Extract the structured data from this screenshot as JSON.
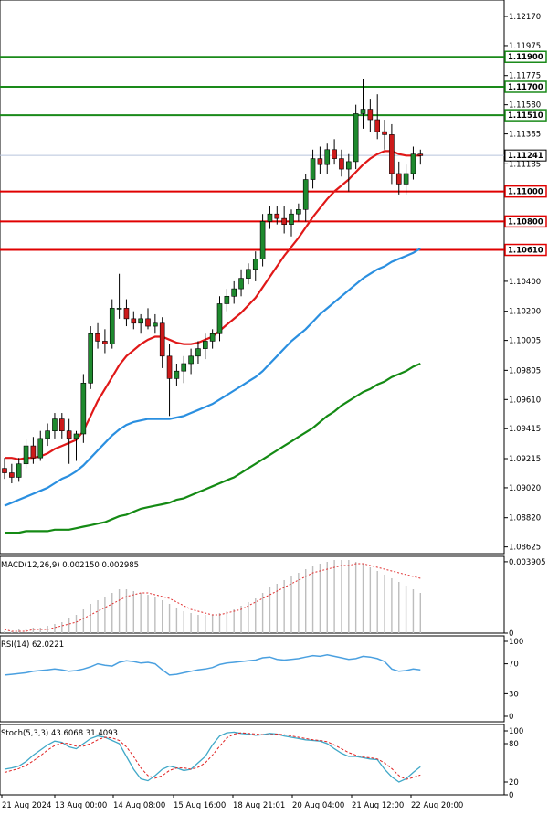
{
  "chart_data": {
    "type": "candlestick",
    "colors": {
      "bull": "#1e8a2e",
      "bear": "#cc1a1a",
      "support": "#e00000",
      "resistance": "#1a8a1a",
      "ma_fast": "#e01818",
      "ma_mid": "#2a8fe0",
      "ma_slow": "#148a14",
      "current_line": "#b8c4dc",
      "macd_hist": "#bdbdbd",
      "macd_signal": "#e03030",
      "rsi": "#4aa0e0",
      "stoch_main": "#40a8c8",
      "stoch_signal": "#e02020"
    },
    "price_axis": {
      "ylim": [
        1.0858,
        1.1228
      ],
      "ticks": [
        "1.12170",
        "1.11975",
        "1.11775",
        "1.11580",
        "1.11385",
        "1.11185",
        "1.10985",
        "1.10785",
        "1.10590",
        "1.10400",
        "1.10200",
        "1.10005",
        "1.09805",
        "1.09610",
        "1.09415",
        "1.09215",
        "1.09020",
        "1.08820",
        "1.08625"
      ],
      "tick_values": [
        1.1217,
        1.11975,
        1.11775,
        1.1158,
        1.11385,
        1.11185,
        1.10985,
        1.10785,
        1.1059,
        1.104,
        1.102,
        1.10005,
        1.09805,
        1.0961,
        1.09415,
        1.09215,
        1.0902,
        1.0882,
        1.08625
      ]
    },
    "current_price": {
      "value": 1.11241,
      "label": "1.11241"
    },
    "levels": [
      {
        "value": 1.119,
        "label": "1.11900",
        "kind": "resistance"
      },
      {
        "value": 1.117,
        "label": "1.11700",
        "kind": "resistance"
      },
      {
        "value": 1.1151,
        "label": "1.11510",
        "kind": "resistance"
      },
      {
        "value": 1.11,
        "label": "1.11000",
        "kind": "support"
      },
      {
        "value": 1.108,
        "label": "1.10800",
        "kind": "support"
      },
      {
        "value": 1.1061,
        "label": "1.10610",
        "kind": "support"
      }
    ],
    "time_labels": [
      "21 Aug 2024",
      "13 Aug 00:00",
      "14 Aug 08:00",
      "15 Aug 16:00",
      "18 Aug 21:01",
      "20 Aug 04:00",
      "21 Aug 12:00",
      "22 Aug 20:00"
    ],
    "candles": [
      [
        1.0915,
        1.0922,
        1.0908,
        1.0912
      ],
      [
        1.0912,
        1.0918,
        1.0905,
        1.0909
      ],
      [
        1.0909,
        1.0922,
        1.0906,
        1.0918
      ],
      [
        1.0918,
        1.0935,
        1.0915,
        1.093
      ],
      [
        1.093,
        1.0936,
        1.0918,
        1.0922
      ],
      [
        1.0922,
        1.094,
        1.092,
        1.0935
      ],
      [
        1.0935,
        1.0945,
        1.093,
        1.094
      ],
      [
        1.094,
        1.0952,
        1.0935,
        1.0948
      ],
      [
        1.0948,
        1.0952,
        1.0935,
        1.094
      ],
      [
        1.094,
        1.0948,
        1.0918,
        1.0935
      ],
      [
        1.0935,
        1.094,
        1.092,
        1.0938
      ],
      [
        1.0938,
        1.0978,
        1.0932,
        1.0972
      ],
      [
        1.0972,
        1.101,
        1.0968,
        1.1005
      ],
      [
        1.1005,
        1.1012,
        1.0995,
        1.1
      ],
      [
        1.1,
        1.1008,
        1.0992,
        1.0998
      ],
      [
        1.0998,
        1.1028,
        1.0995,
        1.1022
      ],
      [
        1.1022,
        1.1045,
        1.1015,
        1.1022
      ],
      [
        1.1022,
        1.1028,
        1.101,
        1.1015
      ],
      [
        1.1015,
        1.102,
        1.1008,
        1.1012
      ],
      [
        1.1012,
        1.1018,
        1.1005,
        1.1015
      ],
      [
        1.1015,
        1.1022,
        1.1008,
        1.101
      ],
      [
        1.101,
        1.1018,
        1.1005,
        1.1012
      ],
      [
        1.1012,
        1.1016,
        1.0982,
        1.099
      ],
      [
        1.099,
        1.0998,
        1.095,
        1.0975
      ],
      [
        1.0975,
        1.0985,
        1.097,
        1.098
      ],
      [
        1.098,
        1.099,
        1.0972,
        1.0985
      ],
      [
        1.0985,
        1.0995,
        1.0978,
        1.099
      ],
      [
        1.099,
        1.1,
        1.0985,
        1.0995
      ],
      [
        1.0995,
        1.1005,
        1.0988,
        1.1
      ],
      [
        1.1,
        1.1008,
        1.0995,
        1.1005
      ],
      [
        1.1005,
        1.103,
        1.1,
        1.1025
      ],
      [
        1.1025,
        1.1035,
        1.102,
        1.103
      ],
      [
        1.103,
        1.104,
        1.1025,
        1.1035
      ],
      [
        1.1035,
        1.1048,
        1.103,
        1.1042
      ],
      [
        1.1042,
        1.1052,
        1.1038,
        1.1048
      ],
      [
        1.1048,
        1.106,
        1.104,
        1.1055
      ],
      [
        1.1055,
        1.1085,
        1.105,
        1.108
      ],
      [
        1.108,
        1.109,
        1.1075,
        1.1085
      ],
      [
        1.1085,
        1.109,
        1.1078,
        1.1082
      ],
      [
        1.1082,
        1.109,
        1.1072,
        1.1078
      ],
      [
        1.1078,
        1.1088,
        1.107,
        1.1085
      ],
      [
        1.1085,
        1.1092,
        1.108,
        1.1088
      ],
      [
        1.1088,
        1.1112,
        1.108,
        1.1108
      ],
      [
        1.1108,
        1.1128,
        1.1102,
        1.1122
      ],
      [
        1.1122,
        1.113,
        1.1112,
        1.1118
      ],
      [
        1.1118,
        1.1132,
        1.1112,
        1.1128
      ],
      [
        1.1128,
        1.1135,
        1.1118,
        1.1122
      ],
      [
        1.1122,
        1.1128,
        1.111,
        1.1115
      ],
      [
        1.1115,
        1.1125,
        1.11,
        1.112
      ],
      [
        1.112,
        1.1158,
        1.1115,
        1.1152
      ],
      [
        1.1152,
        1.1175,
        1.1142,
        1.1155
      ],
      [
        1.1155,
        1.1162,
        1.114,
        1.1148
      ],
      [
        1.1148,
        1.1165,
        1.1135,
        1.114
      ],
      [
        1.114,
        1.1148,
        1.1128,
        1.1138
      ],
      [
        1.1138,
        1.1145,
        1.1105,
        1.1112
      ],
      [
        1.1112,
        1.112,
        1.1098,
        1.1105
      ],
      [
        1.1105,
        1.1118,
        1.1098,
        1.1112
      ],
      [
        1.1112,
        1.113,
        1.1108,
        1.1125
      ],
      [
        1.1125,
        1.1128,
        1.1118,
        1.1124
      ]
    ],
    "ma_fast": [
      1.0922,
      1.0922,
      1.0921,
      1.0922,
      1.0922,
      1.0923,
      1.0925,
      1.0928,
      1.093,
      1.0932,
      1.0934,
      1.094,
      1.095,
      1.096,
      1.0968,
      1.0976,
      1.0984,
      1.099,
      1.0994,
      1.0998,
      1.1001,
      1.1003,
      1.1003,
      1.1001,
      1.0999,
      1.0998,
      1.0998,
      1.0999,
      1.1001,
      1.1003,
      1.1007,
      1.1011,
      1.1015,
      1.1019,
      1.1024,
      1.1029,
      1.1036,
      1.1043,
      1.105,
      1.1057,
      1.1063,
      1.1069,
      1.1076,
      1.1083,
      1.1089,
      1.1095,
      1.11,
      1.1104,
      1.1108,
      1.1113,
      1.1118,
      1.1122,
      1.1125,
      1.1127,
      1.1127,
      1.1125,
      1.1124,
      1.1124,
      1.1124
    ],
    "ma_mid": [
      1.089,
      1.0892,
      1.0894,
      1.0896,
      1.0898,
      1.09,
      1.0902,
      1.0905,
      1.0908,
      1.091,
      1.0913,
      1.0917,
      1.0922,
      1.0927,
      1.0932,
      1.0937,
      1.0941,
      1.0944,
      1.0946,
      1.0947,
      1.0948,
      1.0948,
      1.0948,
      1.0948,
      1.0949,
      1.095,
      1.0952,
      1.0954,
      1.0956,
      1.0958,
      1.0961,
      1.0964,
      1.0967,
      1.097,
      1.0973,
      1.0976,
      1.098,
      1.0985,
      1.099,
      1.0995,
      1.1,
      1.1004,
      1.1008,
      1.1013,
      1.1018,
      1.1022,
      1.1026,
      1.103,
      1.1034,
      1.1038,
      1.1042,
      1.1045,
      1.1048,
      1.105,
      1.1053,
      1.1055,
      1.1057,
      1.1059,
      1.1062
    ],
    "ma_slow": [
      1.0872,
      1.0872,
      1.0872,
      1.0873,
      1.0873,
      1.0873,
      1.0873,
      1.0874,
      1.0874,
      1.0874,
      1.0875,
      1.0876,
      1.0877,
      1.0878,
      1.0879,
      1.0881,
      1.0883,
      1.0884,
      1.0886,
      1.0888,
      1.0889,
      1.089,
      1.0891,
      1.0892,
      1.0894,
      1.0895,
      1.0897,
      1.0899,
      1.0901,
      1.0903,
      1.0905,
      1.0907,
      1.0909,
      1.0912,
      1.0915,
      1.0918,
      1.0921,
      1.0924,
      1.0927,
      1.093,
      1.0933,
      1.0936,
      1.0939,
      1.0942,
      1.0946,
      1.095,
      1.0953,
      1.0957,
      1.096,
      1.0963,
      1.0966,
      1.0968,
      1.0971,
      1.0973,
      1.0976,
      1.0978,
      1.098,
      1.0983,
      1.0985
    ],
    "macd": {
      "title": "MACD(12,26,9) 0.002150 0.002985",
      "ylim": [
        0,
        0.0042
      ],
      "ticks": [
        "0.003905",
        "0"
      ],
      "tick_values": [
        0.003905,
        0
      ],
      "hist": [
        0.0001,
        0.0001,
        0.0002,
        0.0002,
        0.0003,
        0.0003,
        0.0004,
        0.0005,
        0.0006,
        0.0008,
        0.001,
        0.0013,
        0.0016,
        0.0018,
        0.002,
        0.0022,
        0.0024,
        0.0024,
        0.0023,
        0.0022,
        0.0021,
        0.002,
        0.0018,
        0.0016,
        0.0014,
        0.0012,
        0.0011,
        0.001,
        0.001,
        0.001,
        0.0011,
        0.0012,
        0.0013,
        0.0015,
        0.0017,
        0.0019,
        0.0022,
        0.0025,
        0.0027,
        0.0029,
        0.0031,
        0.0033,
        0.0035,
        0.0037,
        0.0038,
        0.0039,
        0.004,
        0.004,
        0.004,
        0.0039,
        0.0038,
        0.0036,
        0.0034,
        0.0032,
        0.003,
        0.0028,
        0.0026,
        0.0024,
        0.0022
      ],
      "signal": [
        0.0002,
        0.0001,
        0.0001,
        0.0001,
        0.0002,
        0.0002,
        0.0002,
        0.0003,
        0.0004,
        0.0005,
        0.0006,
        0.0008,
        0.001,
        0.0012,
        0.0014,
        0.0016,
        0.0018,
        0.002,
        0.0021,
        0.0022,
        0.0022,
        0.0021,
        0.002,
        0.0019,
        0.0017,
        0.0015,
        0.0013,
        0.0012,
        0.0011,
        0.001,
        0.001,
        0.0011,
        0.0012,
        0.0013,
        0.0015,
        0.0017,
        0.0019,
        0.0021,
        0.0023,
        0.0025,
        0.0027,
        0.0029,
        0.0031,
        0.0033,
        0.0034,
        0.0035,
        0.0036,
        0.0037,
        0.0037,
        0.0038,
        0.0038,
        0.0037,
        0.0036,
        0.0035,
        0.0034,
        0.0033,
        0.0032,
        0.0031,
        0.003
      ]
    },
    "rsi": {
      "title": "RSI(14) 62.0221",
      "ylim": [
        0,
        100
      ],
      "ticks": [
        "100",
        "70",
        "30",
        "0"
      ],
      "tick_values": [
        100,
        70,
        30,
        0
      ],
      "values": [
        55,
        56,
        57,
        58,
        60,
        61,
        62,
        63,
        62,
        60,
        61,
        63,
        66,
        70,
        68,
        67,
        72,
        74,
        73,
        71,
        72,
        70,
        62,
        55,
        56,
        58,
        60,
        62,
        63,
        65,
        69,
        71,
        72,
        73,
        74,
        75,
        78,
        79,
        76,
        75,
        76,
        77,
        79,
        81,
        80,
        82,
        80,
        78,
        76,
        77,
        80,
        79,
        77,
        73,
        63,
        60,
        61,
        63,
        62
      ]
    },
    "stoch": {
      "title": "Stoch(5,3,3) 43.6068 31.4093",
      "ylim": [
        0,
        110
      ],
      "ticks": [
        "100",
        "80",
        "20",
        "0"
      ],
      "tick_values": [
        100,
        80,
        20,
        0
      ],
      "k": [
        40,
        42,
        45,
        52,
        62,
        70,
        78,
        84,
        82,
        75,
        72,
        80,
        88,
        92,
        90,
        85,
        80,
        60,
        40,
        25,
        22,
        30,
        40,
        45,
        42,
        38,
        40,
        50,
        60,
        78,
        92,
        97,
        98,
        96,
        95,
        93,
        94,
        96,
        95,
        92,
        90,
        88,
        86,
        85,
        84,
        80,
        72,
        65,
        60,
        60,
        58,
        56,
        55,
        40,
        28,
        20,
        25,
        35,
        44
      ],
      "d": [
        35,
        38,
        41,
        46,
        53,
        61,
        70,
        77,
        81,
        80,
        76,
        76,
        80,
        86,
        90,
        89,
        85,
        75,
        60,
        42,
        30,
        26,
        30,
        38,
        42,
        42,
        40,
        43,
        50,
        62,
        76,
        89,
        95,
        97,
        96,
        95,
        94,
        94,
        95,
        94,
        92,
        90,
        88,
        86,
        85,
        83,
        78,
        72,
        66,
        62,
        59,
        58,
        56,
        50,
        41,
        30,
        24,
        27,
        31
      ]
    }
  }
}
